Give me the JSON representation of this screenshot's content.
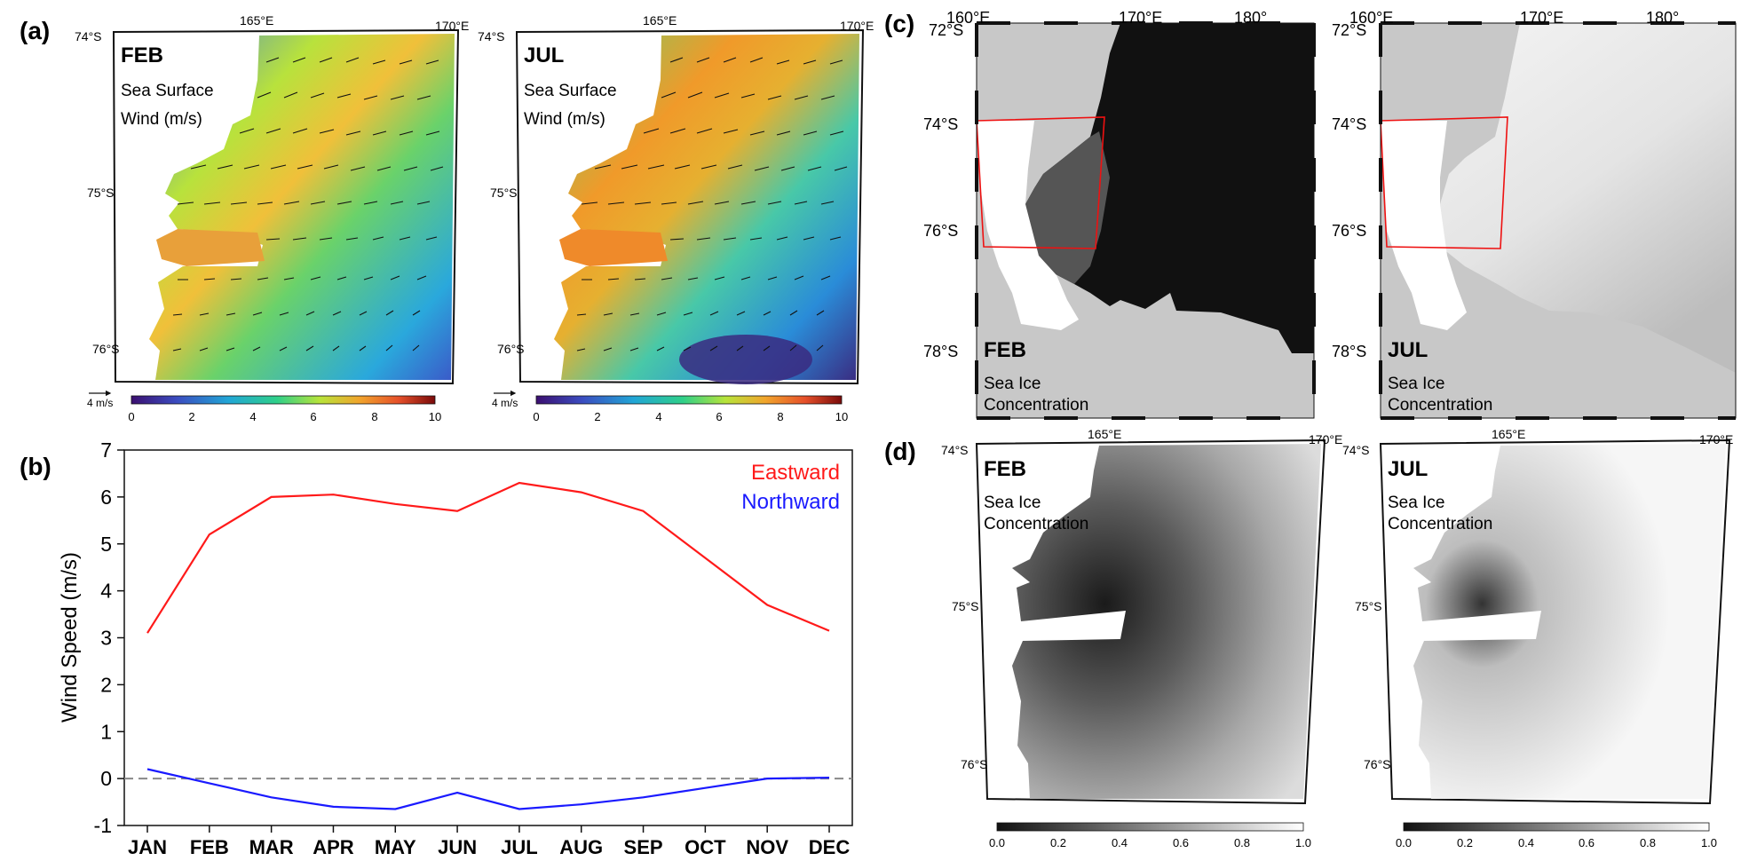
{
  "figure": {
    "panel_a": {
      "label": "(a)",
      "maps": [
        {
          "month": "FEB",
          "title_line1": "Sea Surface",
          "title_line2": "Wind (m/s)"
        },
        {
          "month": "JUL",
          "title_line1": "Sea Surface",
          "title_line2": "Wind (m/s)"
        }
      ],
      "lon_labels": [
        "165°E",
        "170°E"
      ],
      "lat_labels": [
        "74°S",
        "75°S",
        "76°S"
      ],
      "scale_arrow_label": "4 m/s",
      "colorbar_ticks": [
        "0",
        "2",
        "4",
        "6",
        "8",
        "10"
      ]
    },
    "panel_c": {
      "label": "(c)",
      "maps": [
        {
          "month": "FEB",
          "title_line1": "Sea Ice",
          "title_line2": "Concentration"
        },
        {
          "month": "JUL",
          "title_line1": "Sea Ice",
          "title_line2": "Concentration"
        }
      ],
      "lon_labels": [
        "160°E",
        "170°E",
        "180°"
      ],
      "lat_labels": [
        "72°S",
        "74°S",
        "76°S",
        "78°S"
      ]
    },
    "panel_d": {
      "label": "(d)",
      "maps": [
        {
          "month": "FEB",
          "title_line1": "Sea Ice",
          "title_line2": "Concentration"
        },
        {
          "month": "JUL",
          "title_line1": "Sea Ice",
          "title_line2": "Concentration"
        }
      ],
      "lon_labels": [
        "165°E",
        "170°E"
      ],
      "lat_labels": [
        "74°S",
        "75°S",
        "76°S"
      ],
      "colorbar_ticks": [
        "0.0",
        "0.2",
        "0.4",
        "0.6",
        "0.8",
        "1.0"
      ]
    },
    "colors": {
      "eastward": "#ff1a1a",
      "northward": "#1a1aff",
      "zero_line": "#888888"
    }
  },
  "chart_data": {
    "type": "line",
    "panel_label": "(b)",
    "categories": [
      "JAN",
      "FEB",
      "MAR",
      "APR",
      "MAY",
      "JUN",
      "JUL",
      "AUG",
      "SEP",
      "OCT",
      "NOV",
      "DEC"
    ],
    "series": [
      {
        "name": "Eastward",
        "values": [
          3.1,
          5.2,
          6.0,
          6.05,
          5.85,
          5.7,
          6.3,
          6.1,
          5.7,
          4.7,
          3.7,
          3.15
        ]
      },
      {
        "name": "Northward",
        "values": [
          0.2,
          -0.1,
          -0.4,
          -0.6,
          -0.65,
          -0.3,
          -0.65,
          -0.55,
          -0.4,
          -0.2,
          0.0,
          0.02
        ]
      }
    ],
    "title": "",
    "xlabel": "",
    "ylabel": "Wind Speed (m/s)",
    "ylim": [
      -1,
      7
    ],
    "yticks": [
      "7",
      "6",
      "5",
      "4",
      "3",
      "2",
      "1",
      "0",
      "-1"
    ],
    "reference_line": 0,
    "grid": false,
    "legend_position": "top-right"
  }
}
